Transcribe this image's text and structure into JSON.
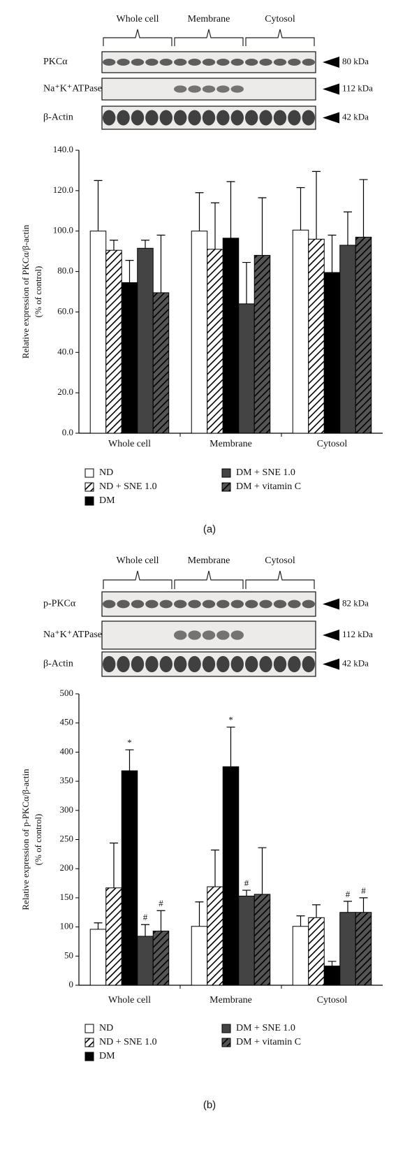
{
  "chart_data": [
    {
      "type": "bar",
      "panel_label": "(a)",
      "blot": {
        "groups": [
          "Whole cell",
          "Membrane",
          "Cytosol"
        ],
        "rows": [
          {
            "name": "PKCα",
            "size": "80 kDa"
          },
          {
            "name": "Na⁺K⁺ATPase",
            "size": "112 kDa"
          },
          {
            "name": "β-Actin",
            "size": "42 kDa"
          }
        ]
      },
      "ylabel": [
        "Relative expression of PKCα/β-actin",
        "(% of control)"
      ],
      "categories": [
        "Whole cell",
        "Membrane",
        "Cytosol"
      ],
      "series": [
        {
          "name": "ND",
          "color": "#ffffff",
          "values": [
            100,
            100,
            100.5
          ],
          "errors": [
            25,
            19,
            21
          ]
        },
        {
          "name": "ND + SNE 1.0",
          "color": "#ffffff",
          "pattern": "hatch",
          "values": [
            90.5,
            91,
            96
          ],
          "errors": [
            5,
            23,
            33.5
          ]
        },
        {
          "name": "DM",
          "color": "#000000",
          "values": [
            74.5,
            96.5,
            79.5
          ],
          "errors": [
            11,
            28,
            18.5
          ]
        },
        {
          "name": "DM + SNE 1.0",
          "color": "#444444",
          "values": [
            91.5,
            64,
            93
          ],
          "errors": [
            4,
            20.5,
            16.5
          ]
        },
        {
          "name": "DM + vitamin C",
          "color": "#555555",
          "pattern": "hatch",
          "values": [
            69.5,
            88,
            97
          ],
          "errors": [
            28.5,
            28.5,
            28.5
          ]
        }
      ],
      "ylim": [
        0,
        140
      ],
      "yticks": [
        {
          "value": 0,
          "label": "0.0"
        },
        {
          "value": 20,
          "label": "20.0"
        },
        {
          "value": 40,
          "label": "40.0"
        },
        {
          "value": 60,
          "label": "60.0"
        },
        {
          "value": 80,
          "label": "80.0"
        },
        {
          "value": 100,
          "label": "100.0"
        },
        {
          "value": 120,
          "label": "120.0"
        },
        {
          "value": 140,
          "label": "140.0"
        }
      ]
    },
    {
      "type": "bar",
      "panel_label": "(b)",
      "blot": {
        "groups": [
          "Whole cell",
          "Membrane",
          "Cytosol"
        ],
        "rows": [
          {
            "name": "p-PKCα",
            "size": "82 kDa"
          },
          {
            "name": "Na⁺K⁺ATPase",
            "size": "112 kDa"
          },
          {
            "name": "β-Actin",
            "size": "42 kDa"
          }
        ]
      },
      "ylabel": [
        "Relative expression of p-PKCα/β-actin",
        "(% of control)"
      ],
      "categories": [
        "Whole cell",
        "Membrane",
        "Cytosol"
      ],
      "series": [
        {
          "name": "ND",
          "color": "#ffffff",
          "values": [
            96,
            101,
            101
          ],
          "errors": [
            11,
            42,
            18
          ]
        },
        {
          "name": "ND + SNE 1.0",
          "color": "#ffffff",
          "pattern": "hatch",
          "values": [
            167,
            169,
            116
          ],
          "errors": [
            77,
            63,
            22
          ]
        },
        {
          "name": "DM",
          "color": "#000000",
          "values": [
            368,
            375,
            33
          ],
          "errors": [
            36,
            68,
            8
          ],
          "annotations": [
            "*",
            "*",
            null
          ]
        },
        {
          "name": "DM + SNE 1.0",
          "color": "#444444",
          "values": [
            84,
            153,
            125
          ],
          "errors": [
            20,
            10,
            19
          ],
          "annotations": [
            "#",
            "#",
            "#"
          ]
        },
        {
          "name": "DM + vitamin C",
          "color": "#555555",
          "pattern": "hatch",
          "values": [
            93,
            156,
            125
          ],
          "errors": [
            35,
            80,
            25
          ],
          "annotations": [
            "#",
            null,
            "#"
          ]
        }
      ],
      "ylim": [
        0,
        500
      ],
      "yticks": [
        0,
        50,
        100,
        150,
        200,
        250,
        300,
        350,
        400,
        450,
        500
      ]
    }
  ]
}
